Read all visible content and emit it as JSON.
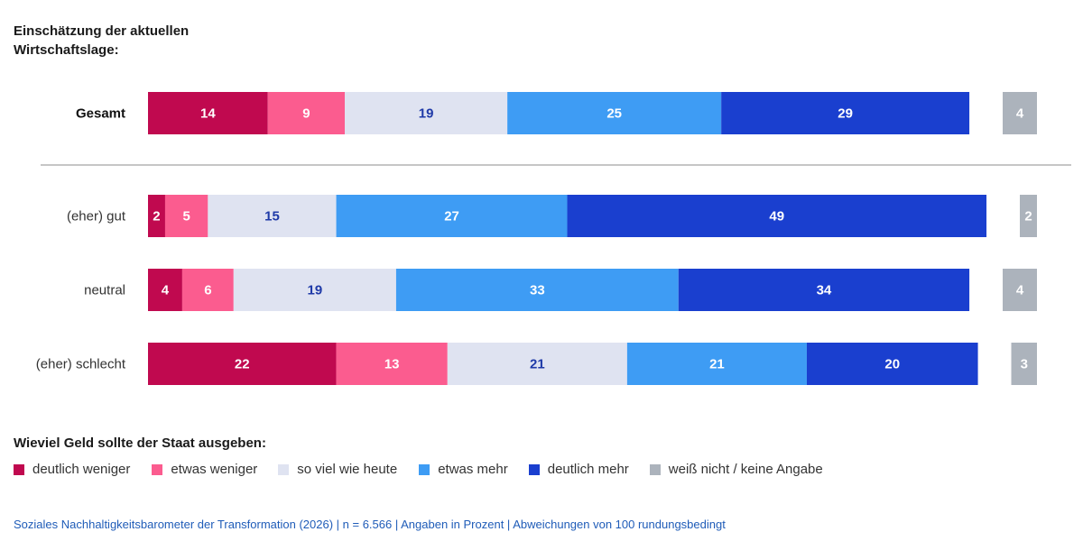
{
  "title_lines": [
    "Einschätzung der aktuellen",
    "Wirtschaftslage:"
  ],
  "legend_title": "Wieviel Geld sollte der Staat ausgeben:",
  "footer": "Soziales Nachhaltigkeitsbarometer der Transformation (2026) | n = 6.566 | Angaben in Prozent | Abweichungen von 100 rundungsbedingt",
  "colors": {
    "deutlich_weniger": "#c0094f",
    "etwas_weniger": "#fb5c8f",
    "so_viel_wie_heute": "#dfe3f1",
    "etwas_mehr": "#3e9cf4",
    "deutlich_mehr": "#1a3fcf",
    "weiss_nicht": "#acb3bc"
  },
  "chart_data": {
    "type": "bar",
    "orientation": "horizontal",
    "stacked": true,
    "categories": [
      "Gesamt",
      "(eher) gut",
      "neutral",
      "(eher) schlecht"
    ],
    "series": [
      {
        "name": "deutlich weniger",
        "key": "deutlich_weniger",
        "values": [
          14,
          2,
          4,
          22
        ]
      },
      {
        "name": "etwas weniger",
        "key": "etwas_weniger",
        "values": [
          9,
          5,
          6,
          13
        ]
      },
      {
        "name": "so viel wie heute",
        "key": "so_viel_wie_heute",
        "values": [
          19,
          15,
          19,
          21
        ]
      },
      {
        "name": "etwas mehr",
        "key": "etwas_mehr",
        "values": [
          25,
          27,
          33,
          21
        ]
      },
      {
        "name": "deutlich mehr",
        "key": "deutlich_mehr",
        "values": [
          29,
          49,
          34,
          20
        ]
      }
    ],
    "separate_series": {
      "name": "weiß nicht / keine Angabe",
      "key": "weiss_nicht",
      "values": [
        4,
        2,
        4,
        3
      ]
    },
    "data_labels": true
  }
}
